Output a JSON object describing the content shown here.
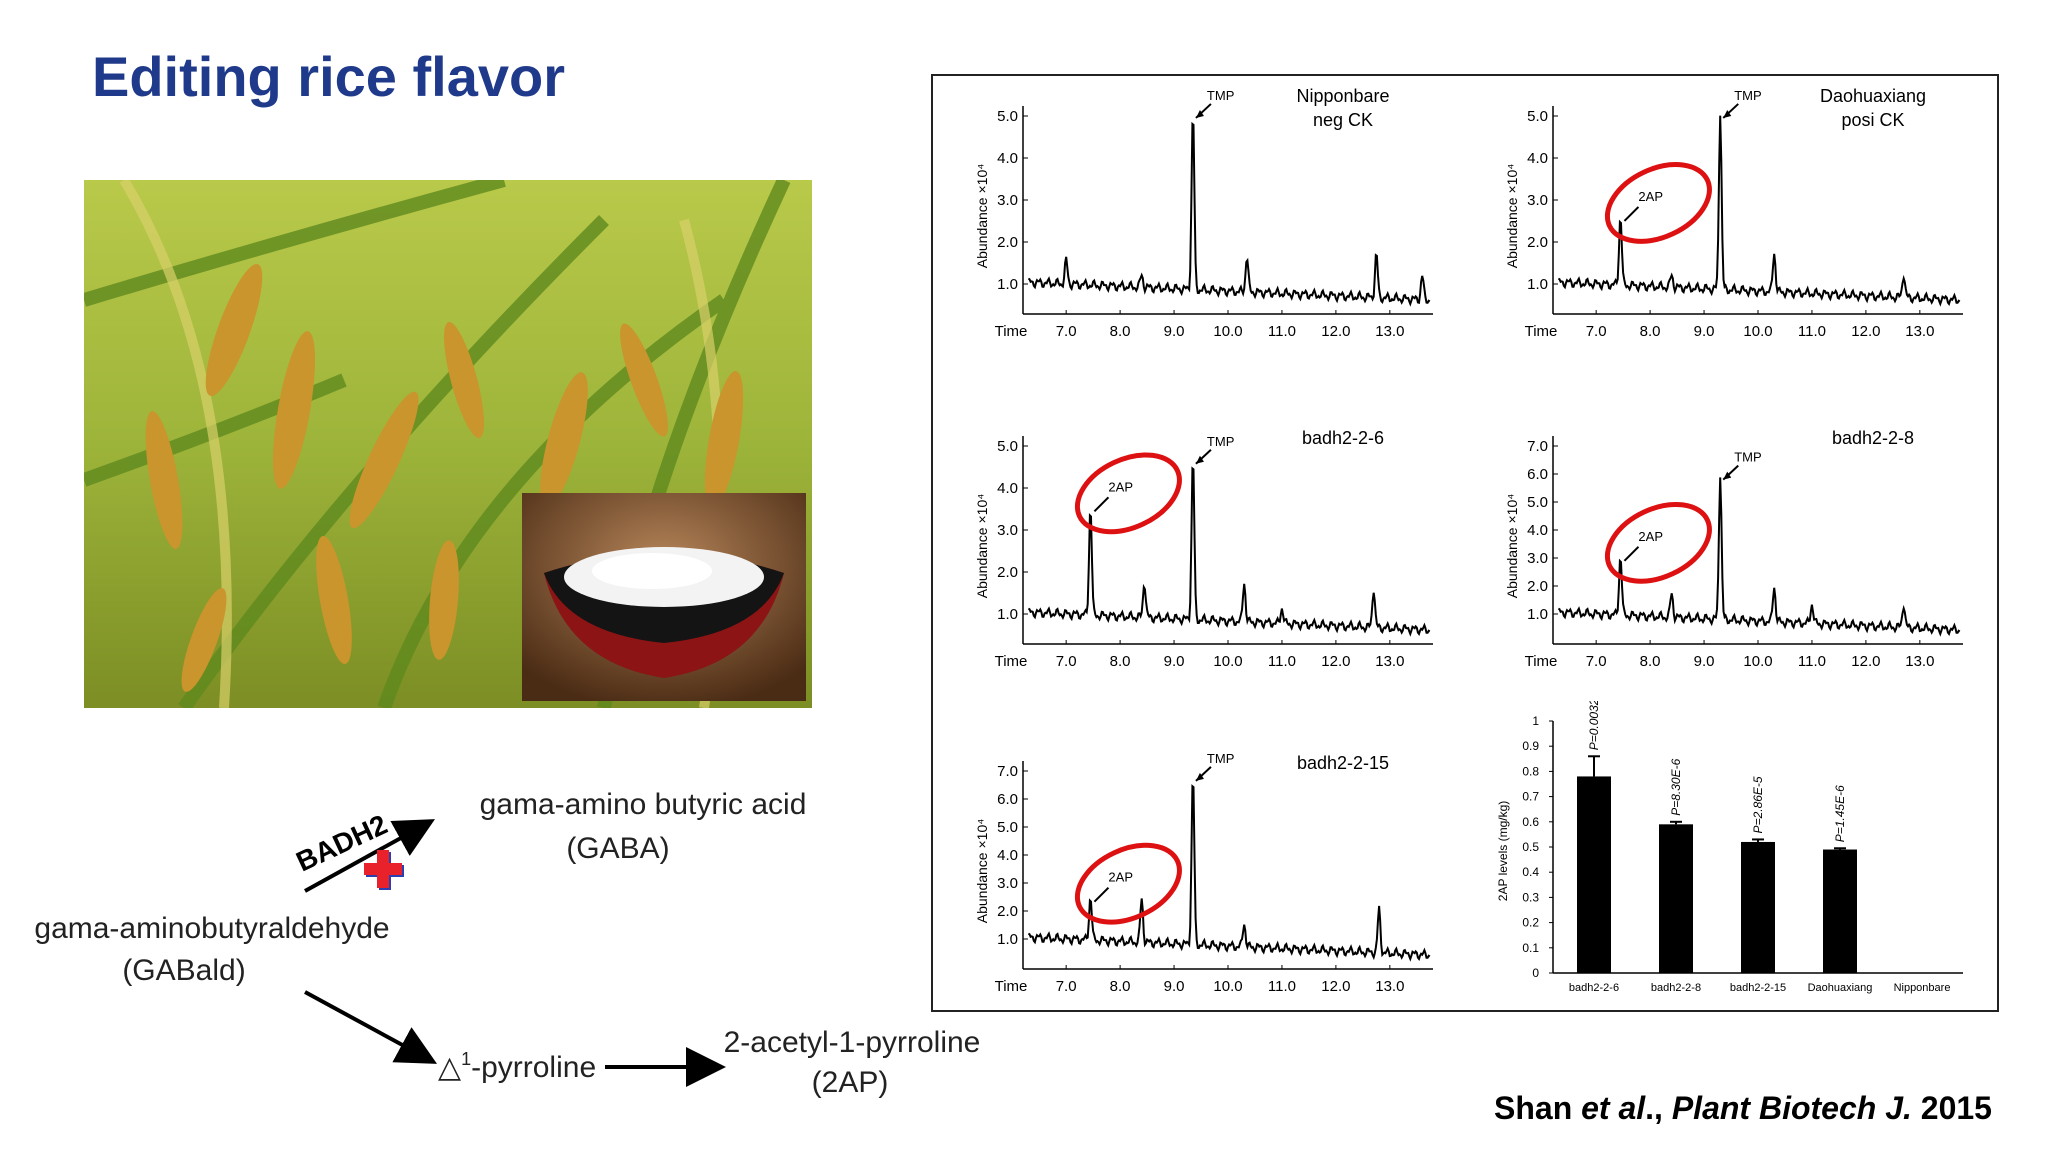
{
  "slide": {
    "title": "Editing rice flavor"
  },
  "pathway": {
    "enzyme": "BADH2",
    "substrate": "gama-aminobutyraldehyde",
    "substrate_abbr": "(GABald)",
    "product_gaba": "gama-amino butyric acid",
    "product_gaba_abbr": "(GABA)",
    "pyrroline_symbol": "△",
    "pyrroline_sup": "1",
    "pyrroline_rest": "-pyrroline",
    "product_2ap": "2-acetyl-1-pyrroline",
    "product_2ap_abbr": "(2AP)"
  },
  "chromatograms": [
    {
      "title": "Nipponbare",
      "subtitle": "neg CK",
      "ylabel": "Abundance ×10⁴",
      "yticks": [
        "5.0",
        "4.0",
        "3.0",
        "2.0",
        "1.0"
      ],
      "xlabel": "Time",
      "xticks": [
        "7.0",
        "8.0",
        "9.0",
        "10.0",
        "11.0",
        "12.0",
        "13.0"
      ],
      "tmp_label": "TMP",
      "peak_2ap": null
    },
    {
      "title": "Daohuaxiang",
      "subtitle": "posi CK",
      "ylabel": "Abundance ×10⁴",
      "yticks": [
        "5.0",
        "4.0",
        "3.0",
        "2.0",
        "1.0"
      ],
      "xlabel": "Time",
      "xticks": [
        "7.0",
        "8.0",
        "9.0",
        "10.0",
        "11.0",
        "12.0",
        "13.0"
      ],
      "tmp_label": "TMP",
      "peak_2ap": "2AP"
    },
    {
      "title": "badh2-2-6",
      "subtitle": "",
      "ylabel": "Abundance ×10⁴",
      "yticks": [
        "5.0",
        "4.0",
        "3.0",
        "2.0",
        "1.0"
      ],
      "xlabel": "Time",
      "xticks": [
        "7.0",
        "8.0",
        "9.0",
        "10.0",
        "11.0",
        "12.0",
        "13.0"
      ],
      "tmp_label": "TMP",
      "peak_2ap": "2AP"
    },
    {
      "title": "badh2-2-8",
      "subtitle": "",
      "ylabel": "Abundance ×10⁴",
      "yticks": [
        "7.0",
        "6.0",
        "5.0",
        "4.0",
        "3.0",
        "2.0",
        "1.0"
      ],
      "xlabel": "Time",
      "xticks": [
        "7.0",
        "8.0",
        "9.0",
        "10.0",
        "11.0",
        "12.0",
        "13.0"
      ],
      "tmp_label": "TMP",
      "peak_2ap": "2AP"
    },
    {
      "title": "badh2-2-15",
      "subtitle": "",
      "ylabel": "Abundance ×10⁴",
      "yticks": [
        "7.0",
        "6.0",
        "5.0",
        "4.0",
        "3.0",
        "2.0",
        "1.0"
      ],
      "xlabel": "Time",
      "xticks": [
        "7.0",
        "8.0",
        "9.0",
        "10.0",
        "11.0",
        "12.0",
        "13.0"
      ],
      "tmp_label": "TMP",
      "peak_2ap": "2AP"
    }
  ],
  "chart_data": {
    "type": "bar",
    "ylabel": "2AP levels (mg/kg)",
    "ylim": [
      0,
      1
    ],
    "yticks": [
      "1",
      "0.9",
      "0.8",
      "0.7",
      "0.6",
      "0.5",
      "0.4",
      "0.3",
      "0.2",
      "0.1",
      "0"
    ],
    "categories": [
      "badh2-2-6",
      "badh2-2-8",
      "badh2-2-15",
      "Daohuaxiang",
      "Nipponbare"
    ],
    "values": [
      0.78,
      0.59,
      0.52,
      0.49,
      0
    ],
    "errors": [
      0.08,
      0.01,
      0.01,
      0.005,
      0
    ],
    "annotations": [
      "P=0.0032",
      "P=8.30E-6",
      "P=2.86E-5",
      "P=1.45E-6",
      ""
    ]
  },
  "citation": {
    "authors": "Shan ",
    "etal": "et al",
    "comma": ".,",
    "journal": "Plant Biotech J.",
    "year": " 2015"
  },
  "colors": {
    "title": "#1f3a8a",
    "highlight": "#dd1111",
    "cross": "#e8212b"
  }
}
